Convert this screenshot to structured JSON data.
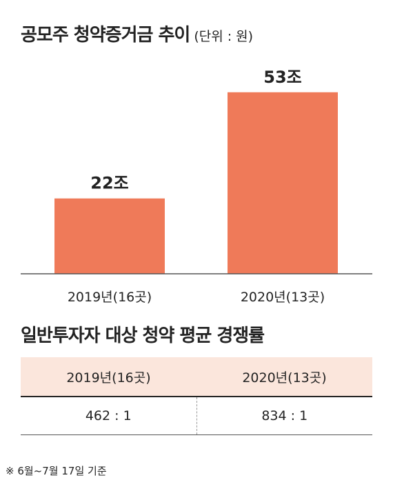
{
  "title": "공모주 청약증거금 추이",
  "unit": "(단위 : 원)",
  "colors": {
    "bar": "#ef7a59",
    "table_header": "#fbe6dc"
  },
  "chart_data": {
    "type": "bar",
    "title": "공모주 청약증거금 추이",
    "unit": "(단위 : 원)",
    "categories": [
      "2019년(16곳)",
      "2020년(13곳)"
    ],
    "values": [
      22,
      53
    ],
    "data_labels": [
      "22조",
      "53조"
    ],
    "ylim": [
      0,
      60
    ],
    "grid": false,
    "legend": "none"
  },
  "table": {
    "title": "일반투자자 대상 청약 평균 경쟁률",
    "headers": [
      "2019년(16곳)",
      "2020년(13곳)"
    ],
    "rows": [
      [
        "462 : 1",
        "834 : 1"
      ]
    ]
  },
  "footnote": "※ 6월~7월 17일 기준"
}
